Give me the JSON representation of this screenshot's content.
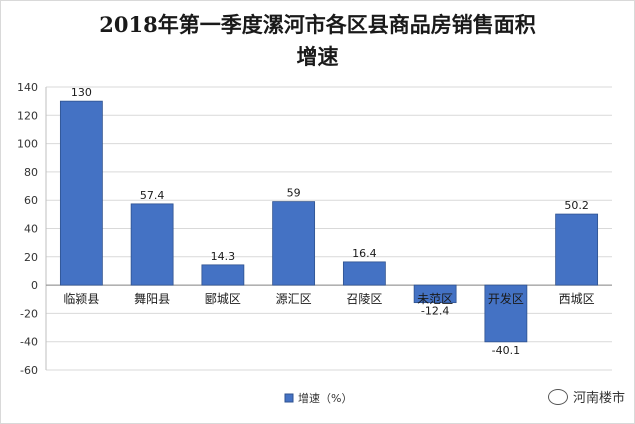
{
  "chart_data": {
    "type": "bar",
    "title_line1": "2018年第一季度漯河市各区县商品房销售面积",
    "title_line2": "增速",
    "categories": [
      "临颍县",
      "舞阳县",
      "郾城区",
      "源汇区",
      "召陵区",
      "未范区",
      "开发区",
      "西城区"
    ],
    "series": [
      {
        "name": "增速（%）",
        "values": [
          130,
          57.4,
          14.3,
          59,
          16.4,
          -12.4,
          -40.1,
          50.2
        ]
      }
    ],
    "data_labels": [
      "130",
      "57.4",
      "14.3",
      "59",
      "16.4",
      "-12.4",
      "-40.1",
      "50.2"
    ],
    "yticks": [
      "140",
      "120",
      "100",
      "80",
      "60",
      "40",
      "20",
      "0",
      "-20",
      "-40",
      "-60"
    ],
    "ylim": [
      -60,
      140
    ],
    "grid": true,
    "legend_position": "bottom",
    "bar_color": "#4472c4",
    "bar_border": "#2f528f"
  },
  "watermark": {
    "text": "河南楼市",
    "icon": "wechat-icon"
  }
}
